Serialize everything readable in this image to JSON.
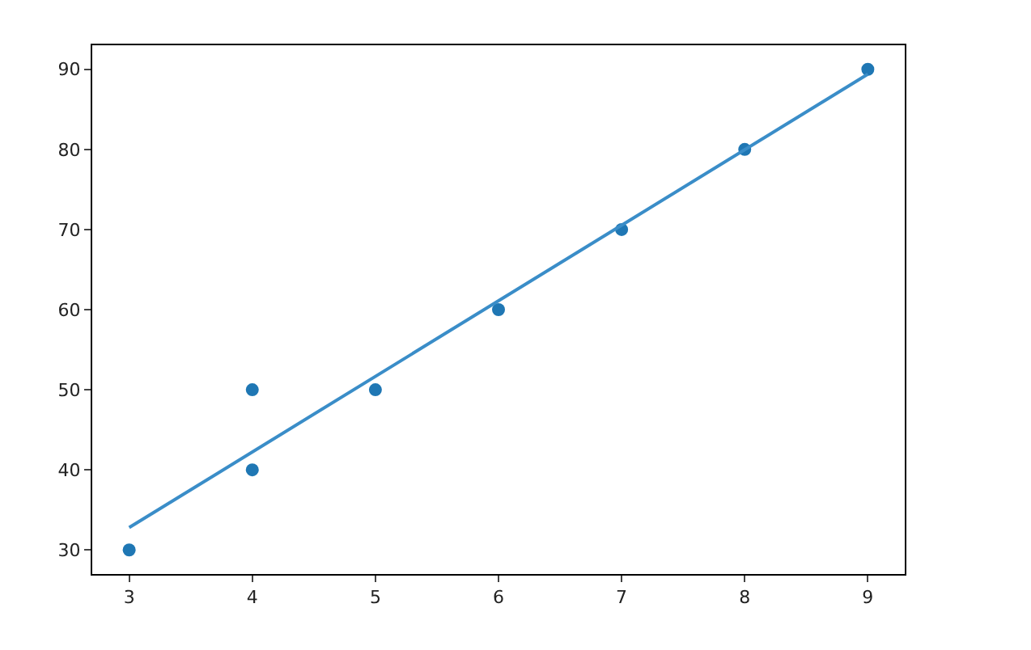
{
  "chart_data": {
    "type": "scatter",
    "series": [
      {
        "color": "#1f77b4",
        "marker": "circle",
        "x": [
          3,
          4,
          4,
          5,
          6,
          7,
          8,
          9
        ],
        "values": [
          30,
          40,
          50,
          50,
          60,
          70,
          80,
          90
        ]
      },
      {
        "type": "line",
        "color": "#3a8dc8",
        "marker": "none",
        "x": [
          3,
          9
        ],
        "values": [
          32.8,
          89.4
        ]
      }
    ],
    "xlim": [
      2.7,
      9.3
    ],
    "xticks": [
      3,
      4,
      5,
      6,
      7,
      8,
      9
    ],
    "ylim": [
      27,
      93
    ],
    "yticks": [
      30,
      40,
      50,
      60,
      70,
      80,
      90
    ],
    "grid": false,
    "legend": false
  }
}
